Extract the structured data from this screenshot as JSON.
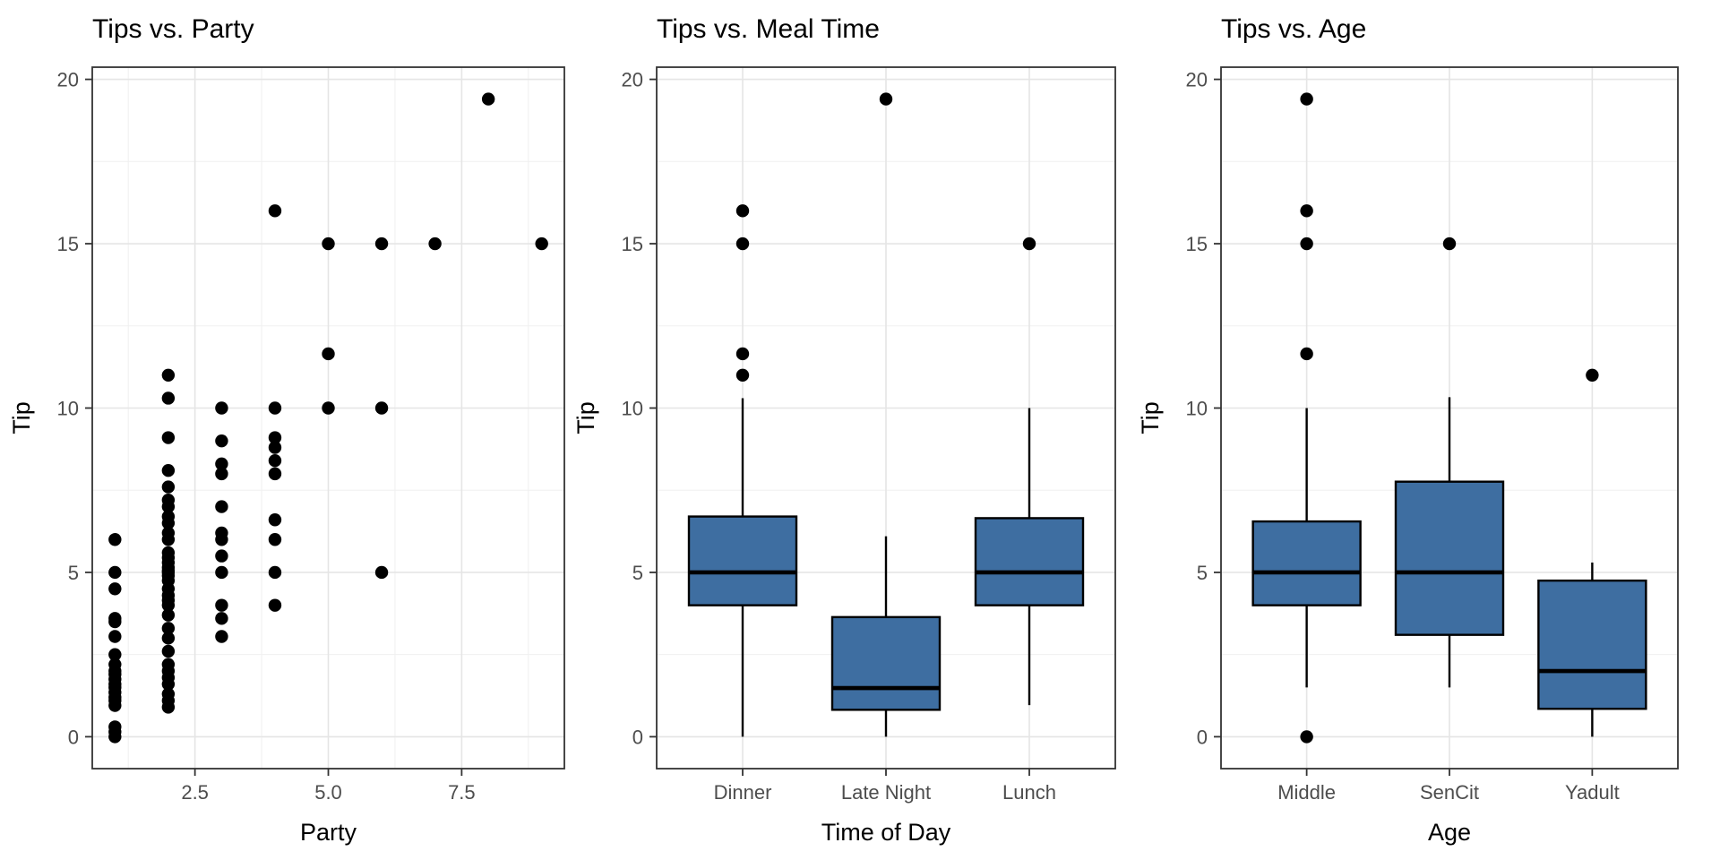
{
  "page": {
    "background": "#ffffff",
    "description": "Three ggplot-style panels: a scatter plot and two boxplots of restaurant tips"
  },
  "styles": {
    "box_fill": "#3E6EA1",
    "point_color": "#000000",
    "title_color": "#000000",
    "axis_title_color": "#000000",
    "tick_label_color": "#4D4D4D",
    "panel_border_color": "#333333",
    "tick_mark_color": "#333333",
    "grid_major_color": "#E5E5E5",
    "grid_minor_color": "#F0F0F0",
    "panel_background": "#FFFFFF"
  },
  "chart_data": [
    {
      "type": "scatter",
      "title": "Tips vs. Party",
      "xlabel": "Party",
      "ylabel": "Tip",
      "xlim": [
        0.575,
        9.425
      ],
      "ylim": [
        -0.97,
        20.37
      ],
      "x_ticks": [
        {
          "value": 2.5,
          "label": "2.5"
        },
        {
          "value": 5.0,
          "label": "5.0"
        },
        {
          "value": 7.5,
          "label": "7.5"
        }
      ],
      "y_ticks": [
        {
          "value": 0,
          "label": "0"
        },
        {
          "value": 5,
          "label": "5"
        },
        {
          "value": 10,
          "label": "10"
        },
        {
          "value": 15,
          "label": "15"
        },
        {
          "value": 20,
          "label": "20"
        }
      ],
      "x_minor": [
        1.25,
        3.75,
        6.25,
        8.75
      ],
      "y_minor": [
        2.5,
        7.5,
        12.5,
        17.5
      ],
      "grid": true,
      "points": [
        [
          1,
          6.0
        ],
        [
          1,
          5.0
        ],
        [
          1,
          4.5
        ],
        [
          1,
          3.6
        ],
        [
          1,
          3.5
        ],
        [
          1,
          3.05
        ],
        [
          1,
          2.5
        ],
        [
          1,
          2.2
        ],
        [
          1,
          2.0
        ],
        [
          1,
          1.9
        ],
        [
          1,
          1.75
        ],
        [
          1,
          1.6
        ],
        [
          1,
          1.5
        ],
        [
          1,
          1.35
        ],
        [
          1,
          1.2
        ],
        [
          1,
          1.1
        ],
        [
          1,
          0.95
        ],
        [
          1,
          0.3
        ],
        [
          1,
          0.15
        ],
        [
          1,
          0.0
        ],
        [
          2,
          11.0
        ],
        [
          2,
          10.3
        ],
        [
          2,
          9.1
        ],
        [
          2,
          8.1
        ],
        [
          2,
          7.6
        ],
        [
          2,
          7.2
        ],
        [
          2,
          7.0
        ],
        [
          2,
          6.7
        ],
        [
          2,
          6.5
        ],
        [
          2,
          6.2
        ],
        [
          2,
          6.0
        ],
        [
          2,
          5.6
        ],
        [
          2,
          5.45
        ],
        [
          2,
          5.3
        ],
        [
          2,
          5.15
        ],
        [
          2,
          5.05
        ],
        [
          2,
          5.0
        ],
        [
          2,
          4.9
        ],
        [
          2,
          4.75
        ],
        [
          2,
          4.5
        ],
        [
          2,
          4.3
        ],
        [
          2,
          4.15
        ],
        [
          2,
          4.0
        ],
        [
          2,
          3.7
        ],
        [
          2,
          3.3
        ],
        [
          2,
          3.0
        ],
        [
          2,
          2.6
        ],
        [
          2,
          2.2
        ],
        [
          2,
          2.0
        ],
        [
          2,
          1.8
        ],
        [
          2,
          1.6
        ],
        [
          2,
          1.3
        ],
        [
          2,
          1.1
        ],
        [
          2,
          0.9
        ],
        [
          3,
          10.0
        ],
        [
          3,
          9.0
        ],
        [
          3,
          8.3
        ],
        [
          3,
          8.0
        ],
        [
          3,
          7.0
        ],
        [
          3,
          6.2
        ],
        [
          3,
          6.0
        ],
        [
          3,
          5.5
        ],
        [
          3,
          5.0
        ],
        [
          3,
          4.0
        ],
        [
          3,
          3.6
        ],
        [
          3,
          3.05
        ],
        [
          4,
          16.0
        ],
        [
          4,
          10.0
        ],
        [
          4,
          9.1
        ],
        [
          4,
          8.8
        ],
        [
          4,
          8.4
        ],
        [
          4,
          8.0
        ],
        [
          4,
          6.6
        ],
        [
          4,
          6.0
        ],
        [
          4,
          5.0
        ],
        [
          4,
          4.0
        ],
        [
          5,
          15.0
        ],
        [
          5,
          11.65
        ],
        [
          5,
          10.0
        ],
        [
          6,
          15.0
        ],
        [
          6,
          10.0
        ],
        [
          6,
          5.0
        ],
        [
          7,
          15.0
        ],
        [
          8,
          19.4
        ],
        [
          9,
          15.0
        ]
      ]
    },
    {
      "type": "boxplot",
      "title": "Tips vs. Meal Time",
      "xlabel": "Time of Day",
      "ylabel": "Tip",
      "ylim": [
        -0.97,
        20.37
      ],
      "y_ticks": [
        {
          "value": 0,
          "label": "0"
        },
        {
          "value": 5,
          "label": "5"
        },
        {
          "value": 10,
          "label": "10"
        },
        {
          "value": 15,
          "label": "15"
        },
        {
          "value": 20,
          "label": "20"
        }
      ],
      "y_minor": [
        2.5,
        7.5,
        12.5,
        17.5
      ],
      "grid": true,
      "categories": [
        "Dinner",
        "Late Night",
        "Lunch"
      ],
      "boxes": [
        {
          "category": "Dinner",
          "whisker_low": 0.0,
          "q1": 4.0,
          "median": 5.0,
          "q3": 6.7,
          "whisker_high": 10.3,
          "outliers": [
            11.0,
            11.65,
            15.0,
            16.0
          ]
        },
        {
          "category": "Late Night",
          "whisker_low": 0.0,
          "q1": 0.82,
          "median": 1.48,
          "q3": 3.64,
          "whisker_high": 6.1,
          "outliers": [
            19.4
          ]
        },
        {
          "category": "Lunch",
          "whisker_low": 0.96,
          "q1": 4.0,
          "median": 5.0,
          "q3": 6.65,
          "whisker_high": 10.0,
          "outliers": [
            15.0
          ]
        }
      ]
    },
    {
      "type": "boxplot",
      "title": "Tips vs. Age",
      "xlabel": "Age",
      "ylabel": "Tip",
      "ylim": [
        -0.97,
        20.37
      ],
      "y_ticks": [
        {
          "value": 0,
          "label": "0"
        },
        {
          "value": 5,
          "label": "5"
        },
        {
          "value": 10,
          "label": "10"
        },
        {
          "value": 15,
          "label": "15"
        },
        {
          "value": 20,
          "label": "20"
        }
      ],
      "y_minor": [
        2.5,
        7.5,
        12.5,
        17.5
      ],
      "grid": true,
      "categories": [
        "Middle",
        "SenCit",
        "Yadult"
      ],
      "boxes": [
        {
          "category": "Middle",
          "whisker_low": 1.5,
          "q1": 4.0,
          "median": 5.0,
          "q3": 6.55,
          "whisker_high": 10.0,
          "outliers": [
            0.0,
            11.65,
            15.0,
            16.0,
            19.4
          ]
        },
        {
          "category": "SenCit",
          "whisker_low": 1.5,
          "q1": 3.1,
          "median": 5.0,
          "q3": 7.76,
          "whisker_high": 10.33,
          "outliers": [
            15.0
          ]
        },
        {
          "category": "Yadult",
          "whisker_low": 0.0,
          "q1": 0.85,
          "median": 2.0,
          "q3": 4.75,
          "whisker_high": 5.3,
          "outliers": [
            11.0
          ]
        }
      ]
    }
  ]
}
